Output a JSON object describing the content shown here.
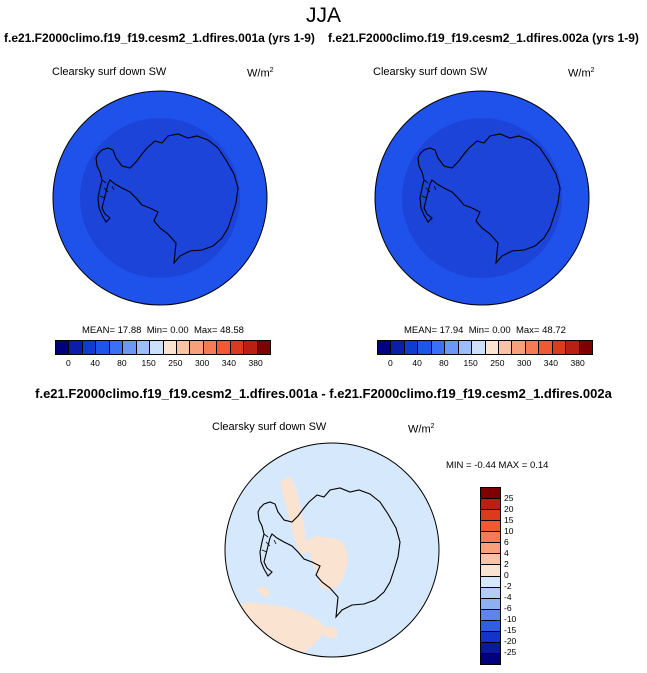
{
  "main_title": "JJA",
  "panels": [
    {
      "case_title": "f.e21.F2000climo.f19_f19.cesm2_1.dfires.001a (yrs 1-9)",
      "variable": "Clearsky surf down SW",
      "units_base": "W/m",
      "units_exp": "2",
      "mean_label": "MEAN=",
      "mean": "17.88",
      "min_label": "Min=",
      "min": "0.00",
      "max_label": "Max=",
      "max": "48.58"
    },
    {
      "case_title": "f.e21.F2000climo.f19_f19.cesm2_1.dfires.002a (yrs 1-9)",
      "variable": "Clearsky surf down SW",
      "units_base": "W/m",
      "units_exp": "2",
      "mean_label": "MEAN=",
      "mean": "17.94",
      "min_label": "Min=",
      "min": "0.00",
      "max_label": "Max=",
      "max": "48.72"
    }
  ],
  "abs_colorbar": {
    "colors": [
      "#00007f",
      "#0a1fa6",
      "#0e3ccc",
      "#1d55e8",
      "#3a70f5",
      "#6b97f7",
      "#9cbdf8",
      "#cce0fb",
      "#fbe3d2",
      "#f9c3a6",
      "#f7a07a",
      "#f47b53",
      "#ef5a33",
      "#db3a1d",
      "#b82012",
      "#7f0000"
    ],
    "ticks": [
      "0",
      "40",
      "80",
      "150",
      "250",
      "300",
      "340",
      "380"
    ]
  },
  "diff": {
    "title": "f.e21.F2000climo.f19_f19.cesm2_1.dfires.001a - f.e21.F2000climo.f19_f19.cesm2_1.dfires.002a",
    "variable": "Clearsky surf down SW",
    "units_base": "W/m",
    "units_exp": "2",
    "stats": "MIN = -0.44 MAX = 0.14",
    "colorbar": {
      "colors_top_to_bottom": [
        "#7f0000",
        "#b82012",
        "#db3a1d",
        "#ef5a33",
        "#f47b53",
        "#f7a07a",
        "#f9c3a6",
        "#fbe3d2",
        "#d6e8fb",
        "#b5cdf6",
        "#8eaff2",
        "#5c86ec",
        "#2f5ee3",
        "#1434c7",
        "#0a1b99",
        "#00007f"
      ],
      "ticks_top_to_bottom": [
        "25",
        "20",
        "15",
        "10",
        "6",
        "4",
        "2",
        "0",
        "-2",
        "-4",
        "-6",
        "-10",
        "-15",
        "-20",
        "-25"
      ]
    }
  },
  "colors": {
    "ocean_ring": "#1f52ea",
    "interior_blue": "#1c44d8",
    "diff_background": "#d6e8fb",
    "diff_positive": "#fbe3d2",
    "coastline": "#000000"
  }
}
